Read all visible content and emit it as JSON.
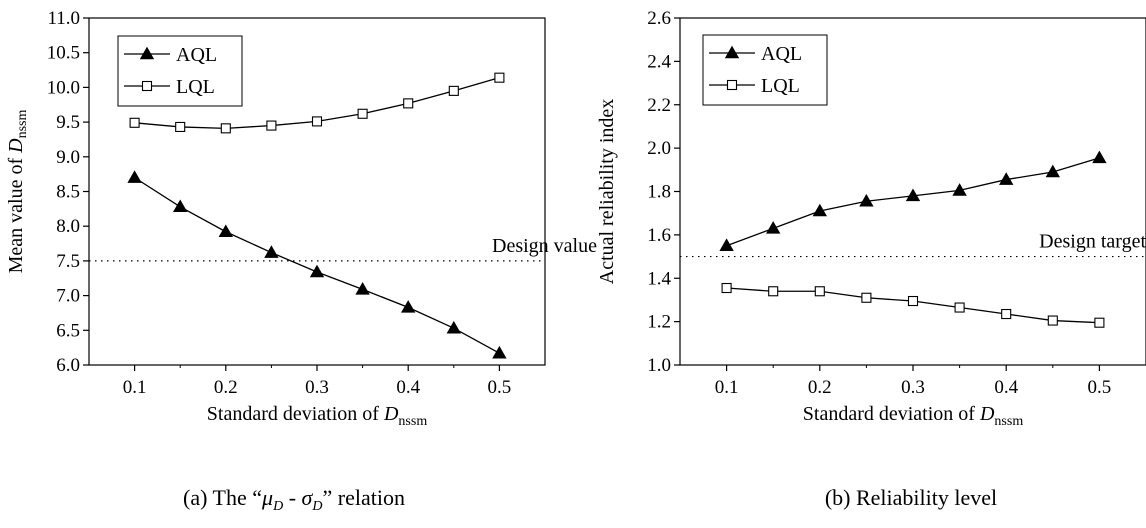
{
  "chart_data": [
    {
      "type": "line",
      "x": [
        0.1,
        0.15,
        0.2,
        0.25,
        0.3,
        0.35,
        0.4,
        0.45,
        0.5
      ],
      "series": [
        {
          "name": "AQL",
          "marker": "filled-triangle",
          "values": [
            8.7,
            8.28,
            7.92,
            7.62,
            7.34,
            7.09,
            6.83,
            6.53,
            6.17
          ]
        },
        {
          "name": "LQL",
          "marker": "open-square",
          "values": [
            9.49,
            9.43,
            9.41,
            9.45,
            9.51,
            9.62,
            9.77,
            9.95,
            10.14
          ]
        }
      ],
      "xlabel": {
        "main": "Standard deviation of ",
        "var": "D",
        "sub": "nssm"
      },
      "ylabel": {
        "main": "Mean value of ",
        "var": "D",
        "sub": "nssm"
      },
      "xlim": [
        0.05,
        0.55
      ],
      "ylim": [
        6.0,
        11.0
      ],
      "xticks": [
        "0.1",
        "0.2",
        "0.3",
        "0.4",
        "0.5"
      ],
      "yticks": [
        "6.0",
        "6.5",
        "7.0",
        "7.5",
        "8.0",
        "8.5",
        "9.0",
        "9.5",
        "10.0",
        "10.5",
        "11.0"
      ],
      "reference_line": {
        "y": 7.5,
        "label": "Design value",
        "style": "dotted"
      },
      "legend": "top-left",
      "caption": "(a) The “μD - σD” relation"
    },
    {
      "type": "line",
      "x": [
        0.1,
        0.15,
        0.2,
        0.25,
        0.3,
        0.35,
        0.4,
        0.45,
        0.5
      ],
      "series": [
        {
          "name": "AQL",
          "marker": "filled-triangle",
          "values": [
            1.55,
            1.63,
            1.71,
            1.755,
            1.78,
            1.805,
            1.855,
            1.89,
            1.955
          ]
        },
        {
          "name": "LQL",
          "marker": "open-square",
          "values": [
            1.355,
            1.34,
            1.34,
            1.31,
            1.295,
            1.265,
            1.235,
            1.205,
            1.195
          ]
        }
      ],
      "xlabel": {
        "main": "Standard deviation of ",
        "var": "D",
        "sub": "nssm"
      },
      "ylabel": {
        "main": "Actual reliability index"
      },
      "xlim": [
        0.05,
        0.55
      ],
      "ylim": [
        1.0,
        2.6
      ],
      "xticks": [
        "0.1",
        "0.2",
        "0.3",
        "0.4",
        "0.5"
      ],
      "yticks": [
        "1.0",
        "1.2",
        "1.4",
        "1.6",
        "1.8",
        "2.0",
        "2.2",
        "2.4",
        "2.6"
      ],
      "reference_line": {
        "y": 1.5,
        "label": "Design target",
        "style": "dotted"
      },
      "legend": "top-left",
      "caption": "(b) Reliability level"
    }
  ]
}
